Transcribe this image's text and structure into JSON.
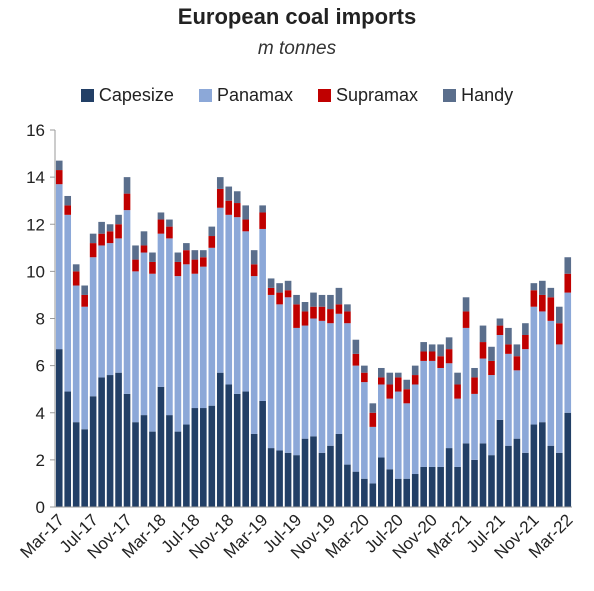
{
  "chart_data": {
    "type": "bar",
    "stacked": true,
    "title": "European coal imports",
    "subtitle": "m tonnes",
    "ylim": [
      0,
      16
    ],
    "yticks": [
      0,
      2,
      4,
      6,
      8,
      10,
      12,
      14,
      16
    ],
    "grid": false,
    "legend_position": "top",
    "x_start": "Mar-17",
    "tick_labels": [
      "Mar-17",
      "Jul-17",
      "Nov-17",
      "Mar-18",
      "Jul-18",
      "Nov-18",
      "Mar-19",
      "Jul-19",
      "Nov-19",
      "Mar-20",
      "Jul-20",
      "Nov-20",
      "Mar-21",
      "Jul-21",
      "Nov-21",
      "Mar-22"
    ],
    "series": [
      {
        "name": "Capesize",
        "color": "#223F66",
        "values": [
          6.7,
          4.9,
          3.6,
          3.3,
          4.7,
          5.5,
          5.6,
          5.7,
          4.8,
          3.6,
          3.9,
          3.2,
          5.1,
          3.9,
          3.2,
          3.5,
          4.2,
          4.2,
          4.3,
          5.7,
          5.2,
          4.8,
          4.9,
          3.1,
          4.5,
          2.5,
          2.4,
          2.3,
          2.2,
          2.9,
          3.0,
          2.3,
          2.6,
          3.1,
          1.8,
          1.5,
          1.2,
          1.0,
          2.1,
          1.6,
          1.2,
          1.2,
          1.4,
          1.7,
          1.7,
          1.7,
          2.5,
          1.7,
          2.7,
          2.0,
          2.7,
          2.2,
          3.7,
          2.6,
          2.9,
          2.3,
          3.5,
          3.6,
          2.6,
          2.3,
          4.0
        ]
      },
      {
        "name": "Panamax",
        "color": "#8CA8D8",
        "values": [
          7.0,
          7.5,
          5.8,
          5.2,
          5.9,
          5.6,
          5.6,
          5.7,
          7.8,
          6.4,
          6.9,
          6.7,
          6.5,
          7.5,
          6.6,
          6.8,
          5.7,
          6.0,
          6.7,
          7.0,
          7.2,
          7.5,
          6.8,
          6.7,
          7.3,
          6.5,
          6.2,
          6.6,
          5.4,
          4.8,
          5.0,
          5.6,
          5.2,
          5.1,
          6.0,
          4.5,
          4.1,
          2.4,
          3.1,
          3.0,
          3.7,
          3.2,
          3.8,
          4.5,
          4.5,
          4.2,
          3.6,
          2.9,
          4.9,
          2.8,
          3.6,
          3.4,
          3.6,
          3.9,
          2.9,
          4.4,
          5.0,
          4.7,
          5.3,
          4.6,
          5.1
        ]
      },
      {
        "name": "Supramax",
        "color": "#C00000",
        "values": [
          0.6,
          0.4,
          0.6,
          0.5,
          0.6,
          0.5,
          0.5,
          0.6,
          0.7,
          0.5,
          0.3,
          0.5,
          0.6,
          0.5,
          0.6,
          0.6,
          0.6,
          0.4,
          0.5,
          0.8,
          0.6,
          0.6,
          0.5,
          0.5,
          0.7,
          0.3,
          0.5,
          0.3,
          1.0,
          0.6,
          0.5,
          0.6,
          0.6,
          0.4,
          0.5,
          0.5,
          0.4,
          0.6,
          0.3,
          0.6,
          0.6,
          0.6,
          0.4,
          0.4,
          0.4,
          0.5,
          0.6,
          0.6,
          0.7,
          0.7,
          0.7,
          0.6,
          0.4,
          0.4,
          0.6,
          0.6,
          0.7,
          0.7,
          1.0,
          0.9,
          0.8
        ]
      },
      {
        "name": "Handy",
        "color": "#5A6E8C",
        "values": [
          0.4,
          0.4,
          0.3,
          0.4,
          0.4,
          0.5,
          0.3,
          0.4,
          0.7,
          0.6,
          0.6,
          0.4,
          0.3,
          0.3,
          0.4,
          0.3,
          0.4,
          0.3,
          0.4,
          0.5,
          0.6,
          0.5,
          0.6,
          0.6,
          0.3,
          0.4,
          0.4,
          0.4,
          0.4,
          0.4,
          0.6,
          0.5,
          0.6,
          0.7,
          0.3,
          0.6,
          0.3,
          0.4,
          0.4,
          0.5,
          0.2,
          0.4,
          0.4,
          0.4,
          0.3,
          0.5,
          0.5,
          0.5,
          0.6,
          0.4,
          0.7,
          0.6,
          0.3,
          0.7,
          0.5,
          0.5,
          0.3,
          0.6,
          0.4,
          0.7,
          0.7
        ]
      }
    ]
  }
}
